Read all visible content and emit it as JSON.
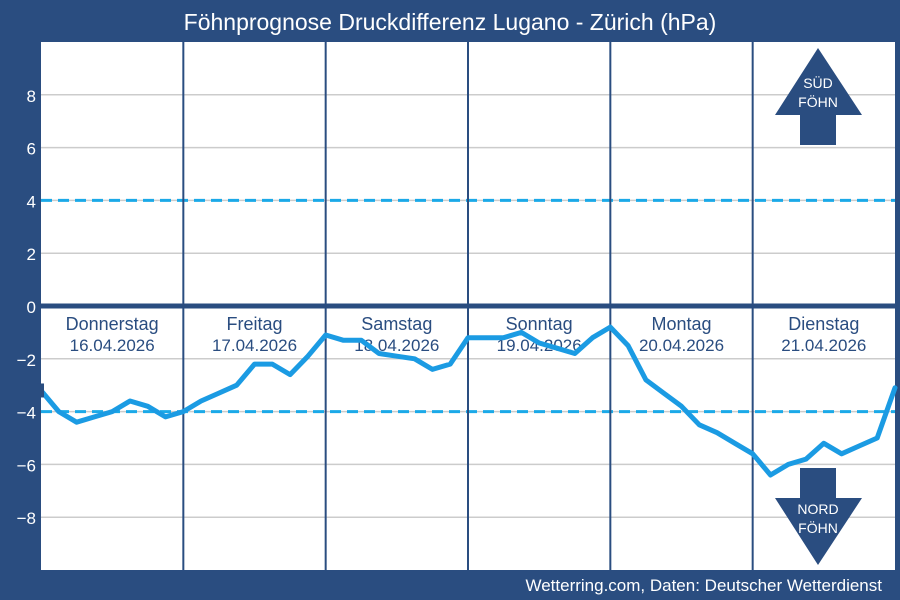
{
  "chart_data": {
    "type": "line",
    "title": "Föhnprognose Druckdifferenz Lugano - Zürich (hPa)",
    "source": "Wetterring.com, Daten: Deutscher Wetterdienst",
    "xlabel": "",
    "ylabel": "",
    "ylim": [
      -10,
      10
    ],
    "yticks": [
      8,
      6,
      4,
      2,
      0,
      -2,
      -4,
      -6,
      -8
    ],
    "ytick_labels": [
      "8",
      "6",
      "4",
      "2",
      "0",
      "−2",
      "−4",
      "−6",
      "−8"
    ],
    "grid": true,
    "thresholds": [
      4,
      -4
    ],
    "zero_line": 0,
    "days": [
      {
        "name": "Donnerstag",
        "date": "16.04.2026"
      },
      {
        "name": "Freitag",
        "date": "17.04.2026"
      },
      {
        "name": "Samstag",
        "date": "18.04.2026"
      },
      {
        "name": "Sonntag",
        "date": "19.04.2026"
      },
      {
        "name": "Montag",
        "date": "20.04.2026"
      },
      {
        "name": "Dienstag",
        "date": "21.04.2026"
      }
    ],
    "indicators": {
      "south": {
        "line1": "SÜD",
        "line2": "FÖHN"
      },
      "north": {
        "line1": "NORD",
        "line2": "FÖHN"
      }
    },
    "series": [
      {
        "name": "Druckdifferenz Lugano - Zürich",
        "x_unit": "hours since 16.04.2026 00:00",
        "x": [
          0,
          3,
          6,
          9,
          12,
          15,
          18,
          21,
          24,
          27,
          30,
          33,
          36,
          39,
          42,
          45,
          48,
          51,
          54,
          57,
          60,
          63,
          66,
          69,
          72,
          75,
          78,
          81,
          84,
          87,
          90,
          93,
          96,
          99,
          102,
          105,
          108,
          111,
          114,
          117,
          120,
          123,
          126,
          129,
          132,
          135,
          138,
          141,
          144
        ],
        "values": [
          -3.2,
          -4.0,
          -4.4,
          -4.2,
          -4.0,
          -3.6,
          -3.8,
          -4.2,
          -4.0,
          -3.6,
          -3.3,
          -3.0,
          -2.2,
          -2.2,
          -2.6,
          -1.9,
          -1.1,
          -1.3,
          -1.3,
          -1.8,
          -1.9,
          -2.0,
          -2.4,
          -2.2,
          -1.2,
          -1.2,
          -1.2,
          -1.0,
          -1.4,
          -1.6,
          -1.8,
          -1.2,
          -0.8,
          -1.5,
          -2.8,
          -3.3,
          -3.8,
          -4.5,
          -4.8,
          -5.2,
          -5.6,
          -6.4,
          -6.0,
          -5.8,
          -5.2,
          -5.6,
          -5.3,
          -5.0,
          -3.1
        ]
      }
    ]
  }
}
